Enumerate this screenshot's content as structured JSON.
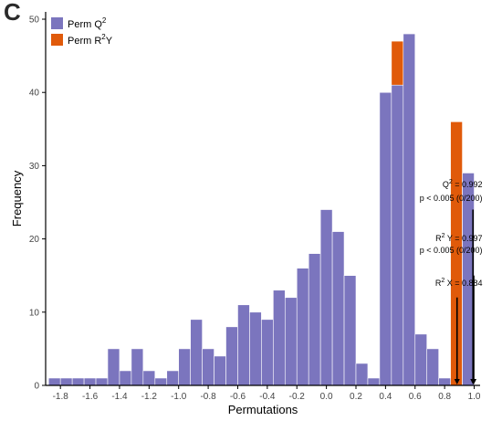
{
  "panel_label": "C",
  "chart_data": {
    "type": "bar",
    "stacking": "overlaid histograms (R2Y drawn behind Q2 in overlap)",
    "xlabel": "Permutations",
    "ylabel": "Frequency",
    "xlim": [
      -1.9,
      1.04
    ],
    "ylim": [
      0,
      51
    ],
    "bin_width": 0.08,
    "x_ticks": [
      -1.8,
      -1.6,
      -1.4,
      -1.2,
      -1.0,
      -0.8,
      -0.6,
      -0.4,
      -0.2,
      0.0,
      0.2,
      0.4,
      0.6,
      0.8,
      1.0
    ],
    "x_tick_labels": [
      "-1.8",
      "-1.6",
      "-1.4",
      "-1.2",
      "-1.0",
      "-0.8",
      "-0.6",
      "-0.4",
      "-0.2",
      "0.0",
      "0.2",
      "0.4",
      "0.6",
      "0.8",
      "1.0"
    ],
    "y_ticks": [
      0,
      10,
      20,
      30,
      40,
      50
    ],
    "y_tick_labels": [
      "0",
      "10",
      "20",
      "30",
      "40",
      "50"
    ],
    "legend_position": "top-left",
    "series": [
      {
        "name": "Perm Q2",
        "legend_label": "Perm Q",
        "legend_sup": "2",
        "color": "#7b75be",
        "bins": [
          {
            "x": -1.84,
            "y": 1
          },
          {
            "x": -1.76,
            "y": 1
          },
          {
            "x": -1.68,
            "y": 1
          },
          {
            "x": -1.6,
            "y": 1
          },
          {
            "x": -1.52,
            "y": 1
          },
          {
            "x": -1.44,
            "y": 5
          },
          {
            "x": -1.36,
            "y": 2
          },
          {
            "x": -1.28,
            "y": 5
          },
          {
            "x": -1.2,
            "y": 2
          },
          {
            "x": -1.12,
            "y": 1
          },
          {
            "x": -1.04,
            "y": 2
          },
          {
            "x": -0.96,
            "y": 5
          },
          {
            "x": -0.88,
            "y": 9
          },
          {
            "x": -0.8,
            "y": 5
          },
          {
            "x": -0.72,
            "y": 4
          },
          {
            "x": -0.64,
            "y": 8
          },
          {
            "x": -0.56,
            "y": 11
          },
          {
            "x": -0.48,
            "y": 10
          },
          {
            "x": -0.4,
            "y": 9
          },
          {
            "x": -0.32,
            "y": 13
          },
          {
            "x": -0.24,
            "y": 12
          },
          {
            "x": -0.16,
            "y": 16
          },
          {
            "x": -0.08,
            "y": 18
          },
          {
            "x": 0.0,
            "y": 24
          },
          {
            "x": 0.08,
            "y": 21
          },
          {
            "x": 0.16,
            "y": 15
          },
          {
            "x": 0.24,
            "y": 3
          },
          {
            "x": 0.32,
            "y": 1
          },
          {
            "x": 0.4,
            "y": 40
          },
          {
            "x": 0.48,
            "y": 41
          },
          {
            "x": 0.56,
            "y": 48
          },
          {
            "x": 0.64,
            "y": 7
          },
          {
            "x": 0.72,
            "y": 5
          },
          {
            "x": 0.8,
            "y": 1
          },
          {
            "x": 0.88,
            "y": 0
          },
          {
            "x": 0.96,
            "y": 29
          }
        ]
      },
      {
        "name": "Perm R2Y",
        "legend_label": "Perm R",
        "legend_sup": "2",
        "legend_suffix": "Y",
        "color": "#e05a0a",
        "bins": [
          {
            "x": 0.32,
            "y": 1
          },
          {
            "x": 0.4,
            "y": 37
          },
          {
            "x": 0.48,
            "y": 47
          },
          {
            "x": 0.56,
            "y": 46
          },
          {
            "x": 0.64,
            "y": 3
          },
          {
            "x": 0.72,
            "y": 2
          },
          {
            "x": 0.8,
            "y": 0
          },
          {
            "x": 0.88,
            "y": 36
          },
          {
            "x": 0.96,
            "y": 28
          }
        ]
      }
    ],
    "annotations": [
      {
        "id": "q2",
        "line1_pre": "Q",
        "line1_sup": "2",
        "line1_post": " = 0.992",
        "line2": "p < 0.005   (0/200)",
        "x_data": 0.992,
        "y_top": 24
      },
      {
        "id": "r2y",
        "line1_pre": "R",
        "line1_sup": "2",
        "line1_post": " Y = 0.997",
        "line2": "p < 0.005   (0/200)",
        "x_data": 0.997,
        "y_top": 15
      },
      {
        "id": "r2x",
        "line1_pre": "R",
        "line1_sup": "2",
        "line1_post": " X = 0.884",
        "x_data": 0.884,
        "y_top": 12
      }
    ]
  }
}
